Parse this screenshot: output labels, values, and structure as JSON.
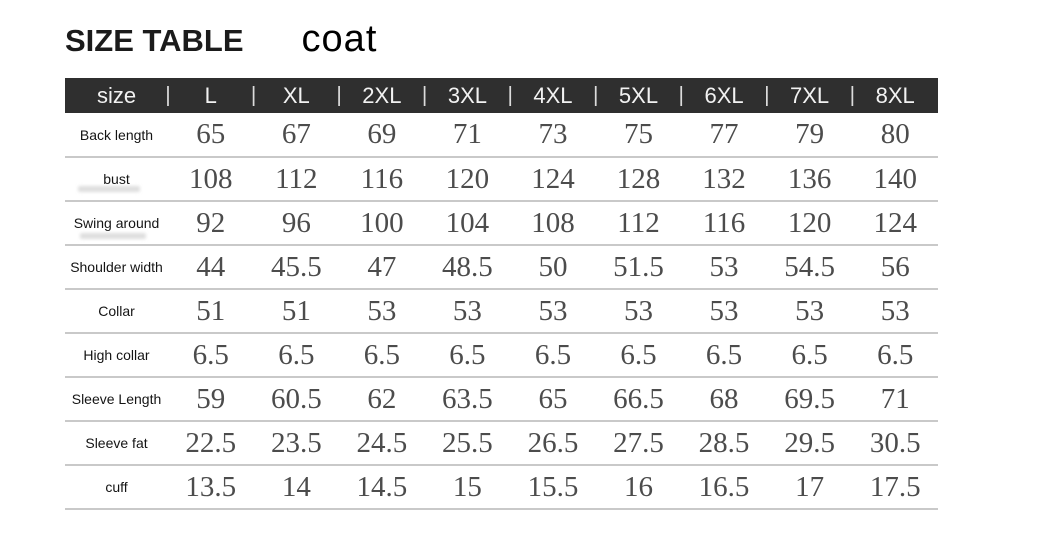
{
  "title": "SIZE TABLE",
  "subtitle": "coat",
  "chart_data": {
    "type": "table",
    "title": "SIZE TABLE",
    "garment": "coat",
    "columns": [
      "size",
      "L",
      "XL",
      "2XL",
      "3XL",
      "4XL",
      "5XL",
      "6XL",
      "7XL",
      "8XL"
    ],
    "rows": [
      {
        "label": "Back length",
        "values": [
          65,
          67,
          69,
          71,
          73,
          75,
          77,
          79,
          80
        ]
      },
      {
        "label": "bust",
        "values": [
          108,
          112,
          116,
          120,
          124,
          128,
          132,
          136,
          140
        ]
      },
      {
        "label": "Swing around",
        "values": [
          92,
          96,
          100,
          104,
          108,
          112,
          116,
          120,
          124
        ]
      },
      {
        "label": "Shoulder width",
        "values": [
          44,
          45.5,
          47,
          48.5,
          50,
          51.5,
          53,
          54.5,
          56
        ]
      },
      {
        "label": "Collar",
        "values": [
          51,
          51,
          53,
          53,
          53,
          53,
          53,
          53,
          53
        ]
      },
      {
        "label": "High collar",
        "values": [
          6.5,
          6.5,
          6.5,
          6.5,
          6.5,
          6.5,
          6.5,
          6.5,
          6.5
        ]
      },
      {
        "label": "Sleeve Length",
        "values": [
          59,
          60.5,
          62,
          63.5,
          65,
          66.5,
          68,
          69.5,
          71
        ]
      },
      {
        "label": "Sleeve fat",
        "values": [
          22.5,
          23.5,
          24.5,
          25.5,
          26.5,
          27.5,
          28.5,
          29.5,
          30.5
        ]
      },
      {
        "label": "cuff",
        "values": [
          13.5,
          14,
          14.5,
          15,
          15.5,
          16,
          16.5,
          17,
          17.5
        ]
      }
    ],
    "header_separator_glyph": "|",
    "layout": {
      "grid": "horizontal-row-dividers-only",
      "legend": "none"
    }
  },
  "colors": {
    "header_bg": "#2f2f2f",
    "header_text": "#f2f2f2",
    "value_text": "#4c4c4c",
    "label_text": "#141414",
    "divider": "#c9c9c9",
    "page_bg": "#ffffff"
  }
}
